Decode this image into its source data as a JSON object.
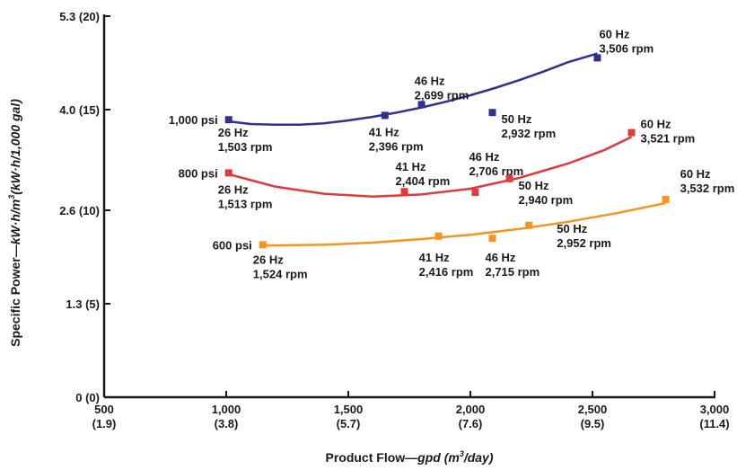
{
  "chart_data": {
    "type": "scatter",
    "x_axis": {
      "range": [
        500,
        3000
      ],
      "ticks": [
        {
          "value": 500,
          "label": "500",
          "sub": "(1.9)"
        },
        {
          "value": 1000,
          "label": "1,000",
          "sub": "(3.8)"
        },
        {
          "value": 1500,
          "label": "1,500",
          "sub": "(5.7)"
        },
        {
          "value": 2000,
          "label": "2,000",
          "sub": "(7.6)"
        },
        {
          "value": 2500,
          "label": "2,500",
          "sub": "(9.5)"
        },
        {
          "value": 3000,
          "label": "3,000",
          "sub": "(11.4)"
        }
      ],
      "title_main": "Product Flow—",
      "title_unit": "gpd (m",
      "title_sup": "3",
      "title_end": "/day)"
    },
    "y_axis": {
      "range": [
        0,
        5.3
      ],
      "ticks": [
        {
          "value": 0,
          "label": "0 (0)"
        },
        {
          "value": 1.3,
          "label": "1.3 (5)"
        },
        {
          "value": 2.6,
          "label": "2.6 (10)"
        },
        {
          "value": 4.0,
          "label": "4.0 (15)"
        },
        {
          "value": 5.3,
          "label": "5.3 (20)"
        }
      ],
      "title_main": "Specific Power—",
      "title_unit1": "kW·h/m",
      "title_sup": "3",
      "title_unit2": "(kW·h/1,000 gal)"
    },
    "grid": false,
    "series": [
      {
        "name": "1,000 psi",
        "color": "#2e3192",
        "points": [
          {
            "x": 1010,
            "y": 3.86,
            "hz": "26 Hz",
            "rpm": "1,503 rpm"
          },
          {
            "x": 1650,
            "y": 3.92,
            "hz": "41 Hz",
            "rpm": "2,396 rpm"
          },
          {
            "x": 1800,
            "y": 4.07,
            "hz": "46 Hz",
            "rpm": "2,699 rpm"
          },
          {
            "x": 2090,
            "y": 3.96,
            "hz": "50 Hz",
            "rpm": "2,932 rpm"
          },
          {
            "x": 2520,
            "y": 4.72,
            "hz": "60 Hz",
            "rpm": "3,506 rpm"
          }
        ],
        "fit": [
          [
            1000,
            3.84
          ],
          [
            1100,
            3.8
          ],
          [
            1200,
            3.79
          ],
          [
            1300,
            3.79
          ],
          [
            1400,
            3.81
          ],
          [
            1500,
            3.85
          ],
          [
            1600,
            3.9
          ],
          [
            1700,
            3.96
          ],
          [
            1800,
            4.03
          ],
          [
            1900,
            4.11
          ],
          [
            2000,
            4.2
          ],
          [
            2100,
            4.3
          ],
          [
            2200,
            4.41
          ],
          [
            2300,
            4.53
          ],
          [
            2400,
            4.66
          ],
          [
            2520,
            4.78
          ]
        ]
      },
      {
        "name": "800 psi",
        "color": "#e03a3e",
        "points": [
          {
            "x": 1010,
            "y": 3.12,
            "hz": "26 Hz",
            "rpm": "1,513 rpm"
          },
          {
            "x": 1730,
            "y": 2.86,
            "hz": "41 Hz",
            "rpm": "2,404 rpm"
          },
          {
            "x": 2020,
            "y": 2.85,
            "hz": "46 Hz",
            "rpm": "2,706 rpm"
          },
          {
            "x": 2160,
            "y": 3.04,
            "hz": "50 Hz",
            "rpm": "2,940 rpm"
          },
          {
            "x": 2660,
            "y": 3.68,
            "hz": "60 Hz",
            "rpm": "3,521 rpm"
          }
        ],
        "fit": [
          [
            1000,
            3.11
          ],
          [
            1200,
            2.93
          ],
          [
            1400,
            2.83
          ],
          [
            1600,
            2.79
          ],
          [
            1800,
            2.82
          ],
          [
            2000,
            2.9
          ],
          [
            2200,
            3.05
          ],
          [
            2400,
            3.25
          ],
          [
            2550,
            3.44
          ],
          [
            2660,
            3.62
          ]
        ]
      },
      {
        "name": "600 psi",
        "color": "#f7941d",
        "points": [
          {
            "x": 1150,
            "y": 2.12,
            "hz": "26 Hz",
            "rpm": "1,524 rpm"
          },
          {
            "x": 1870,
            "y": 2.24,
            "hz": "41 Hz",
            "rpm": "2,416 rpm"
          },
          {
            "x": 2090,
            "y": 2.21,
            "hz": "46 Hz",
            "rpm": "2,715 rpm"
          },
          {
            "x": 2240,
            "y": 2.39,
            "hz": "50 Hz",
            "rpm": "2,952 rpm"
          },
          {
            "x": 2800,
            "y": 2.75,
            "hz": "60 Hz",
            "rpm": "3,532 rpm"
          }
        ],
        "fit": [
          [
            1150,
            2.11
          ],
          [
            1400,
            2.12
          ],
          [
            1600,
            2.15
          ],
          [
            1800,
            2.2
          ],
          [
            2000,
            2.26
          ],
          [
            2200,
            2.34
          ],
          [
            2400,
            2.44
          ],
          [
            2600,
            2.56
          ],
          [
            2800,
            2.7
          ]
        ]
      }
    ]
  }
}
